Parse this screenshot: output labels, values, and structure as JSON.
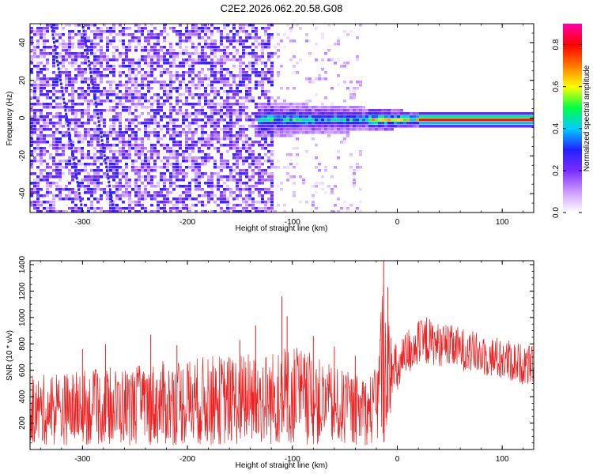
{
  "title": "C2E2.2026.062.20.58.G08",
  "chart_data": [
    {
      "type": "heatmap",
      "xlabel": "Height of straight line (km)",
      "ylabel": "Frequency (Hz)",
      "xlim": [
        -350,
        130
      ],
      "ylim": [
        -50,
        50
      ],
      "x_ticks": [
        -300,
        -200,
        -100,
        0,
        100
      ],
      "y_ticks": [
        -40,
        -20,
        0,
        20,
        40
      ],
      "grid": false,
      "colorbar": {
        "label": "Normalized spectral amplitude",
        "range": [
          0.0,
          0.9
        ],
        "ticks": [
          0.0,
          0.2,
          0.4,
          0.6,
          0.8
        ],
        "colormap": [
          "#ffffff",
          "#cc99ff",
          "#7a2cff",
          "#2222ff",
          "#00ccff",
          "#00ff44",
          "#ffff00",
          "#ff7700",
          "#ff0000",
          "#ff00aa"
        ]
      },
      "features": [
        {
          "description_key": "noise_field",
          "x_range": [
            -350,
            -120
          ],
          "freq_range": [
            -50,
            50
          ],
          "amplitude": [
            0.05,
            0.3
          ]
        },
        {
          "description_key": "sparse_noise",
          "x_range": [
            -120,
            -35
          ],
          "freq_range": [
            -50,
            50
          ],
          "amplitude": [
            0.02,
            0.12
          ]
        },
        {
          "description_key": "tone_band",
          "x_range": [
            -135,
            130
          ],
          "center_freq": 0,
          "amplitude_peak": 0.85
        }
      ]
    },
    {
      "type": "line",
      "xlabel": "Height of straight line (km)",
      "ylabel": "SNR (10 * v/v)",
      "xlim": [
        -350,
        130
      ],
      "ylim": [
        0,
        1430
      ],
      "x_ticks": [
        -300,
        -200,
        -100,
        0,
        100
      ],
      "y_ticks": [
        200,
        400,
        600,
        800,
        1000,
        1200,
        1400
      ],
      "grid": false,
      "series": [
        {
          "color": "#ee2222",
          "envelope": {
            "x": [
              -350,
              -300,
              -250,
              -200,
              -150,
              -110,
              -100,
              -60,
              -30,
              -20,
              -15,
              -12,
              -10,
              -5,
              0,
              10,
              20,
              30,
              40,
              60,
              80,
              100,
              130
            ],
            "low": [
              30,
              30,
              30,
              30,
              30,
              30,
              30,
              30,
              30,
              30,
              30,
              30,
              150,
              300,
              400,
              560,
              620,
              640,
              630,
              600,
              560,
              520,
              480
            ],
            "high": [
              560,
              600,
              640,
              700,
              730,
              760,
              820,
              620,
              560,
              620,
              1230,
              1430,
              1080,
              880,
              780,
              930,
              980,
              1000,
              960,
              930,
              880,
              850,
              780
            ]
          },
          "spikes": [
            [
              -300,
              760
            ],
            [
              -278,
              800
            ],
            [
              -235,
              870
            ],
            [
              -210,
              790
            ],
            [
              -150,
              830
            ],
            [
              -135,
              940
            ],
            [
              -110,
              1160
            ],
            [
              -105,
              1010
            ],
            [
              -80,
              860
            ],
            [
              -60,
              780
            ],
            [
              -40,
              710
            ],
            [
              -13,
              1430
            ],
            [
              -9,
              1230
            ],
            [
              28,
              1000
            ]
          ]
        }
      ]
    }
  ]
}
